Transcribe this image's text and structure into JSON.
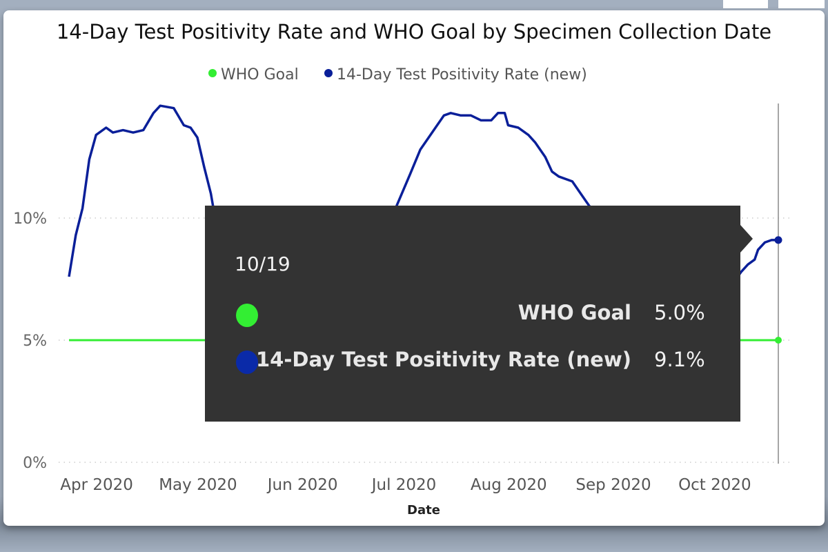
{
  "colors": {
    "who_goal": "#33ee33",
    "rate": "#0a1f99",
    "tooltip_bg": "#333333"
  },
  "chart_data": {
    "type": "line",
    "title": "14-Day Test Positivity Rate and WHO Goal by Specimen Collection Date",
    "xlabel": "Date",
    "ylabel": "",
    "ylim": [
      0,
      15
    ],
    "yticks": [
      "0%",
      "5%",
      "10%"
    ],
    "ytick_values": [
      0,
      5,
      10
    ],
    "xticks": [
      "Apr 2020",
      "May 2020",
      "Jun 2020",
      "Jul 2020",
      "Aug 2020",
      "Sep 2020",
      "Oct 2020"
    ],
    "xtick_dates": [
      "2020-04-01",
      "2020-05-01",
      "2020-06-01",
      "2020-07-01",
      "2020-08-01",
      "2020-09-01",
      "2020-10-01"
    ],
    "xlim": [
      "2020-03-23",
      "2020-10-19"
    ],
    "grid": true,
    "legend_position": "top-center",
    "legend": [
      "WHO Goal",
      "14-Day Test Positivity Rate (new)"
    ],
    "series": [
      {
        "name": "WHO Goal",
        "x": [
          "2020-03-23",
          "2020-10-19"
        ],
        "values": [
          5.0,
          5.0
        ]
      },
      {
        "name": "14-Day Test Positivity Rate (new)",
        "x": [
          "2020-03-23",
          "2020-03-25",
          "2020-03-27",
          "2020-03-29",
          "2020-03-31",
          "2020-04-03",
          "2020-04-05",
          "2020-04-08",
          "2020-04-11",
          "2020-04-14",
          "2020-04-17",
          "2020-04-19",
          "2020-04-23",
          "2020-04-26",
          "2020-04-28",
          "2020-04-30",
          "2020-05-02",
          "2020-05-04",
          "2020-05-05",
          "2020-05-10",
          "2020-05-20",
          "2020-06-01",
          "2020-06-10",
          "2020-06-20",
          "2020-06-25",
          "2020-06-28",
          "2020-07-02",
          "2020-07-05",
          "2020-07-08",
          "2020-07-12",
          "2020-07-14",
          "2020-07-17",
          "2020-07-20",
          "2020-07-23",
          "2020-07-26",
          "2020-07-28",
          "2020-07-30",
          "2020-07-31",
          "2020-08-03",
          "2020-08-06",
          "2020-08-08",
          "2020-08-11",
          "2020-08-13",
          "2020-08-15",
          "2020-08-19",
          "2020-08-21",
          "2020-08-23",
          "2020-08-24",
          "2020-09-01",
          "2020-09-10",
          "2020-09-20",
          "2020-10-01",
          "2020-10-07",
          "2020-10-08",
          "2020-10-10",
          "2020-10-12",
          "2020-10-13",
          "2020-10-15",
          "2020-10-17",
          "2020-10-19"
        ],
        "values": [
          7.6,
          9.3,
          10.4,
          12.4,
          13.4,
          13.7,
          13.5,
          13.6,
          13.5,
          13.6,
          14.3,
          14.6,
          14.5,
          13.8,
          13.7,
          13.3,
          12.1,
          11.0,
          10.2,
          8.5,
          7.0,
          6.5,
          6.8,
          8.0,
          9.5,
          10.5,
          11.8,
          12.8,
          13.4,
          14.2,
          14.3,
          14.2,
          14.2,
          14.0,
          14.0,
          14.3,
          14.3,
          13.8,
          13.7,
          13.4,
          13.1,
          12.5,
          11.9,
          11.7,
          11.5,
          11.1,
          10.7,
          10.5,
          9.5,
          8.5,
          7.8,
          7.5,
          7.6,
          7.8,
          8.1,
          8.3,
          8.7,
          9.0,
          9.1,
          9.1
        ]
      }
    ],
    "hover_date": "2020-10-19"
  },
  "tooltip": {
    "date": "10/19",
    "rows": [
      {
        "name": "WHO Goal",
        "value": "5.0%"
      },
      {
        "name": "14-Day Test Positivity Rate (new)",
        "value": "9.1%"
      }
    ]
  }
}
